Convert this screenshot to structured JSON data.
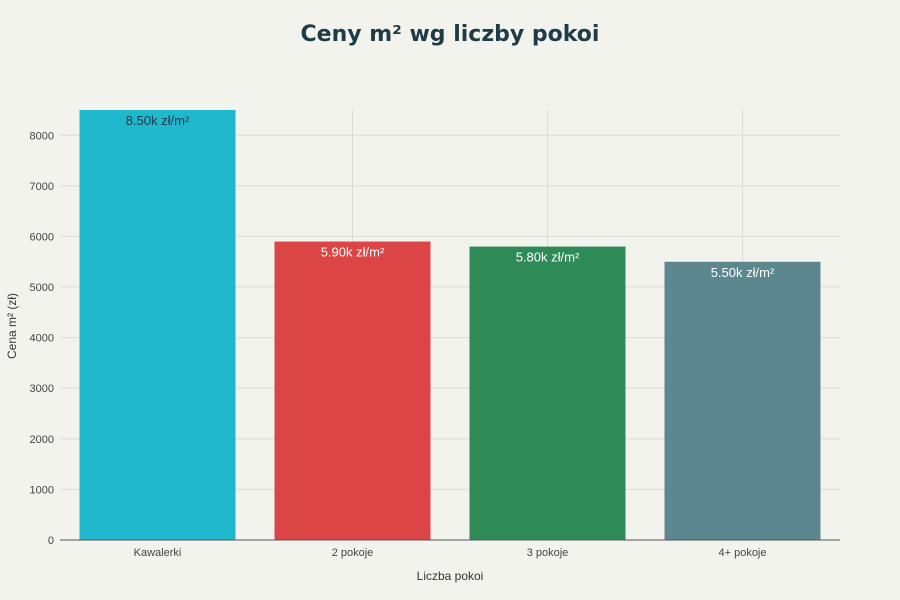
{
  "chart_data": {
    "type": "bar",
    "title": "Ceny m² wg liczby pokoi",
    "xlabel": "Liczba pokoi",
    "ylabel": "Cena m² (zł)",
    "categories": [
      "Kawalerki",
      "2 pokoje",
      "3 pokoje",
      "4+ pokoje"
    ],
    "values": [
      8500,
      5900,
      5800,
      5500
    ],
    "data_labels": [
      "8.50k zł/m²",
      "5.90k zł/m²",
      "5.80k zł/m²",
      "5.50k zł/m²"
    ],
    "bar_colors": [
      "#1fb8cd",
      "#db4545",
      "#2e8b57",
      "#5d878f"
    ],
    "label_colors": [
      "#1f3b46",
      "#ffffff",
      "#ffffff",
      "#ffffff"
    ],
    "ylim": [
      0,
      8500
    ],
    "yticks": [
      0,
      1000,
      2000,
      3000,
      4000,
      5000,
      6000,
      7000,
      8000
    ],
    "grid": true,
    "legend": "none"
  }
}
